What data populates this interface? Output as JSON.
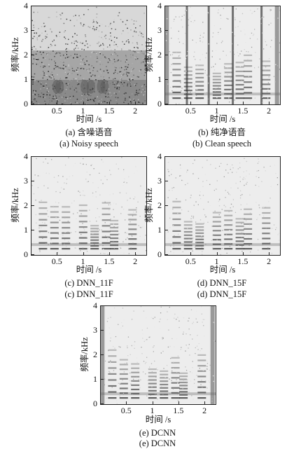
{
  "axes": {
    "ylabel": "频率/kHz",
    "xlabel": "时间 /s",
    "yticks": [
      "0",
      "1",
      "2",
      "3",
      "4"
    ],
    "xticks": [
      "0.5",
      "1",
      "1.5",
      "2"
    ]
  },
  "panels": [
    {
      "caption_cn": "(a) 含噪语音",
      "caption_en": "(a) Noisy speech"
    },
    {
      "caption_cn": "(b) 纯净语音",
      "caption_en": "(b) Clean speech"
    },
    {
      "caption_cn": "(c) DNN_11F",
      "caption_en": "(c) DNN_11F"
    },
    {
      "caption_cn": "(d) DNN_15F",
      "caption_en": "(d) DNN_15F"
    },
    {
      "caption_cn": "(e) DCNN",
      "caption_en": "(e) DCNN"
    }
  ]
}
